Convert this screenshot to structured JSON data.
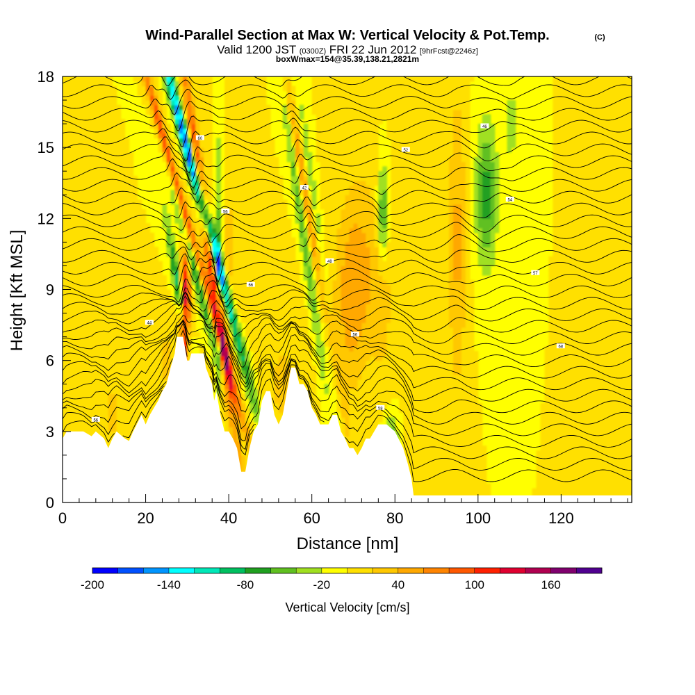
{
  "header": {
    "title": "Wind-Parallel Section at Max W: Vertical Velocity & Pot.Temp.",
    "copyright": "(C)",
    "valid_prefix": "Valid 1200 JST",
    "valid_utc": "(0300Z)",
    "valid_date": "FRI 22 Jun 2012",
    "forecast": "[9hrFcst@2246z]",
    "box_info": "boxWmax=154@35.39,138.21,2821m"
  },
  "chart_data": {
    "type": "heatmap",
    "xlabel": "Distance [nm]",
    "ylabel": "Height [Kft MSL]",
    "xlim": [
      0,
      137
    ],
    "ylim": [
      0,
      18
    ],
    "x_ticks": [
      "0",
      "20",
      "40",
      "60",
      "80",
      "100",
      "120"
    ],
    "y_ticks": [
      "0",
      "3",
      "6",
      "9",
      "12",
      "15",
      "18"
    ],
    "colorbar": {
      "label": "Vertical Velocity [cm/s]",
      "tick_labels": [
        "-200",
        "-140",
        "-80",
        "-20",
        "40",
        "100",
        "160"
      ],
      "colors": [
        "#0000ff",
        "#0050ff",
        "#0095ff",
        "#00ffff",
        "#00e8b8",
        "#00c060",
        "#20a020",
        "#60c020",
        "#a0e020",
        "#ffff00",
        "#ffe000",
        "#ffc800",
        "#ffa800",
        "#ff8400",
        "#ff5800",
        "#ff2000",
        "#e00030",
        "#b00050",
        "#80006e",
        "#500090"
      ]
    },
    "background_value": 0,
    "features": [
      {
        "x": 30.5,
        "y": 11.5,
        "sx": 0.8,
        "sy": 6.0,
        "tilt": -1.6,
        "value": 140
      },
      {
        "x": 29.5,
        "y": 8.0,
        "sx": 0.8,
        "sy": 2.0,
        "tilt": 0,
        "value": 160
      },
      {
        "x": 33.0,
        "y": 13.0,
        "sx": 0.9,
        "sy": 5.5,
        "tilt": -1.5,
        "value": -190
      },
      {
        "x": 32.0,
        "y": 10.0,
        "sx": 1.0,
        "sy": 3.0,
        "tilt": -1.5,
        "value": -120
      },
      {
        "x": 28.0,
        "y": 9.0,
        "sx": 0.7,
        "sy": 2.0,
        "tilt": -1.0,
        "value": -100
      },
      {
        "x": 35.5,
        "y": 10.5,
        "sx": 0.9,
        "sy": 6.0,
        "tilt": -0.8,
        "value": 130
      },
      {
        "x": 37.5,
        "y": 10.0,
        "sx": 0.7,
        "sy": 4.0,
        "tilt": 0,
        "value": -60
      },
      {
        "x": 40.0,
        "y": 10.0,
        "sx": 2.0,
        "sy": 4.0,
        "tilt": 0,
        "value": 25
      },
      {
        "x": 59.5,
        "y": 12.0,
        "sx": 0.8,
        "sy": 5.5,
        "tilt": -1.0,
        "value": 70
      },
      {
        "x": 57.5,
        "y": 12.0,
        "sx": 0.8,
        "sy": 5.5,
        "tilt": -0.8,
        "value": -55
      },
      {
        "x": 61.5,
        "y": 11.0,
        "sx": 0.8,
        "sy": 5.0,
        "tilt": -0.7,
        "value": -40
      },
      {
        "x": 72.0,
        "y": 10.0,
        "sx": 4.0,
        "sy": 3.0,
        "tilt": 0,
        "value": 40
      },
      {
        "x": 69.0,
        "y": 8.0,
        "sx": 2.5,
        "sy": 2.5,
        "tilt": 0,
        "value": 30
      },
      {
        "x": 77.0,
        "y": 12.0,
        "sx": 1.0,
        "sy": 1.6,
        "tilt": 0,
        "value": -80
      },
      {
        "x": 77.0,
        "y": 9.0,
        "sx": 1.5,
        "sy": 2.5,
        "tilt": 0,
        "value": 25
      },
      {
        "x": 84.0,
        "y": 10.0,
        "sx": 1.8,
        "sy": 3.5,
        "tilt": 0,
        "value": 20
      },
      {
        "x": 95.0,
        "y": 11.0,
        "sx": 1.5,
        "sy": 4.5,
        "tilt": 0,
        "value": 45
      },
      {
        "x": 102.0,
        "y": 13.0,
        "sx": 1.8,
        "sy": 2.2,
        "tilt": 0,
        "value": -70
      },
      {
        "x": 108.0,
        "y": 16.0,
        "sx": 1.2,
        "sy": 2.0,
        "tilt": 0,
        "value": -25
      },
      {
        "x": 79.0,
        "y": 2.5,
        "sx": 1.2,
        "sy": 0.8,
        "tilt": 0,
        "value": -60
      },
      {
        "x": 53.0,
        "y": 5.0,
        "sx": 3.0,
        "sy": 2.0,
        "tilt": 0,
        "value": 25
      },
      {
        "x": 12.0,
        "y": 3.8,
        "sx": 2.0,
        "sy": 1.2,
        "tilt": 0,
        "value": 25
      },
      {
        "x": 25.0,
        "y": 6.0,
        "sx": 1.5,
        "sy": 1.0,
        "tilt": 0,
        "value": 30
      }
    ],
    "contour_labels": [
      "56",
      "66",
      "52",
      "68",
      "56",
      "58",
      "57",
      "60",
      "56",
      "54",
      "52",
      "48",
      "46",
      "44",
      "42"
    ],
    "terrain": [
      [
        0,
        2.7
      ],
      [
        1,
        3
      ],
      [
        5,
        3
      ],
      [
        7,
        2.8
      ],
      [
        8,
        3
      ],
      [
        10,
        2.7
      ],
      [
        11,
        2.3
      ],
      [
        12,
        2.7
      ],
      [
        13,
        3
      ],
      [
        15,
        2.7
      ],
      [
        16,
        2.6
      ],
      [
        17,
        3
      ],
      [
        19,
        3.7
      ],
      [
        20,
        3.3
      ],
      [
        21,
        3.7
      ],
      [
        23,
        4.3
      ],
      [
        24,
        4.7
      ],
      [
        25,
        5
      ],
      [
        26,
        5.7
      ],
      [
        27,
        6.3
      ],
      [
        27.5,
        7
      ],
      [
        29,
        7
      ],
      [
        30,
        6
      ],
      [
        30.5,
        6
      ],
      [
        31,
        6.3
      ],
      [
        34,
        6.3
      ],
      [
        34.5,
        5.7
      ],
      [
        36,
        5
      ],
      [
        36.5,
        4.3
      ],
      [
        37,
        4.7
      ],
      [
        38,
        3.7
      ],
      [
        39,
        3
      ],
      [
        40,
        3
      ],
      [
        41,
        2.7
      ],
      [
        42,
        2.3
      ],
      [
        43,
        1.3
      ],
      [
        44,
        1.3
      ],
      [
        45,
        2.3
      ],
      [
        46,
        3
      ],
      [
        47,
        3.3
      ],
      [
        48,
        4.3
      ],
      [
        49,
        4.7
      ],
      [
        50,
        4.7
      ],
      [
        51,
        3.7
      ],
      [
        52,
        3.3
      ],
      [
        53,
        3.7
      ],
      [
        54,
        4.7
      ],
      [
        55,
        5.7
      ],
      [
        56,
        5.7
      ],
      [
        57,
        5
      ],
      [
        58,
        5
      ],
      [
        59,
        4.7
      ],
      [
        60,
        4
      ],
      [
        61,
        3.7
      ],
      [
        62,
        3.3
      ],
      [
        63,
        3.3
      ],
      [
        64,
        3.3
      ],
      [
        65,
        3.7
      ],
      [
        66,
        3.7
      ],
      [
        67,
        3
      ],
      [
        68,
        2.7
      ],
      [
        69,
        2.3
      ],
      [
        70,
        2.3
      ],
      [
        71,
        2
      ],
      [
        72,
        2.3
      ],
      [
        73,
        2.7
      ],
      [
        74,
        2.7
      ],
      [
        76,
        3.3
      ],
      [
        78,
        3.3
      ],
      [
        80,
        3
      ],
      [
        82,
        2.3
      ],
      [
        83,
        1.7
      ],
      [
        84,
        1
      ],
      [
        84.5,
        0.3
      ],
      [
        137,
        0.3
      ]
    ]
  }
}
